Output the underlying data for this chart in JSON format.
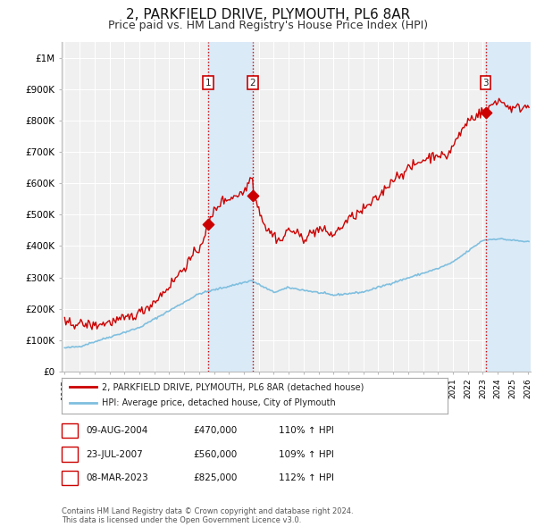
{
  "title": "2, PARKFIELD DRIVE, PLYMOUTH, PL6 8AR",
  "subtitle": "Price paid vs. HM Land Registry's House Price Index (HPI)",
  "title_fontsize": 11,
  "subtitle_fontsize": 9,
  "ylim": [
    0,
    1050000
  ],
  "yticks": [
    0,
    100000,
    200000,
    300000,
    400000,
    500000,
    600000,
    700000,
    800000,
    900000,
    1000000
  ],
  "ytick_labels": [
    "£0",
    "£100K",
    "£200K",
    "£300K",
    "£400K",
    "£500K",
    "£600K",
    "£700K",
    "£800K",
    "£900K",
    "£1M"
  ],
  "background_color": "#ffffff",
  "plot_bg_color": "#f0f0f0",
  "grid_color": "#ffffff",
  "hpi_line_color": "#7fbfdf",
  "price_line_color": "#cc0000",
  "purchase_shading_color": "#daeaf7",
  "hatch_color": "#daeaf7",
  "vline_color": "#cc0000",
  "transactions": [
    {
      "label": "1",
      "date_num": 2004.6,
      "price": 470000,
      "date_str": "09-AUG-2004",
      "hpi_pct": "110%"
    },
    {
      "label": "2",
      "date_num": 2007.6,
      "price": 560000,
      "date_str": "23-JUL-2007",
      "hpi_pct": "109%"
    },
    {
      "label": "3",
      "date_num": 2023.18,
      "price": 825000,
      "date_str": "08-MAR-2023",
      "hpi_pct": "112%"
    }
  ],
  "legend_entries": [
    {
      "label": "2, PARKFIELD DRIVE, PLYMOUTH, PL6 8AR (detached house)",
      "color": "#cc0000",
      "lw": 2
    },
    {
      "label": "HPI: Average price, detached house, City of Plymouth",
      "color": "#7fbfdf",
      "lw": 2
    }
  ],
  "footer_text": "Contains HM Land Registry data © Crown copyright and database right 2024.\nThis data is licensed under the Open Government Licence v3.0.",
  "table_rows": [
    [
      "1",
      "09-AUG-2004",
      "£470,000",
      "110% ↑ HPI"
    ],
    [
      "2",
      "23-JUL-2007",
      "£560,000",
      "109% ↑ HPI"
    ],
    [
      "3",
      "08-MAR-2023",
      "£825,000",
      "112% ↑ HPI"
    ]
  ],
  "xlim_left": 1994.8,
  "xlim_right": 2026.2
}
